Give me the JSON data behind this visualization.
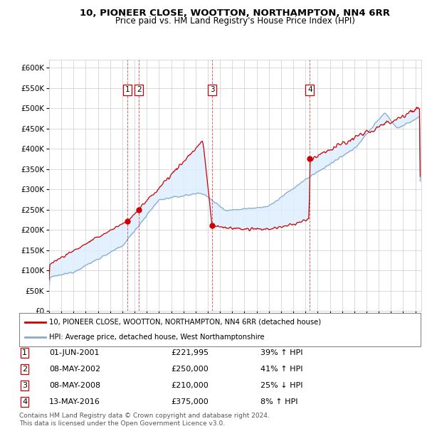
{
  "title": "10, PIONEER CLOSE, WOOTTON, NORTHAMPTON, NN4 6RR",
  "subtitle": "Price paid vs. HM Land Registry's House Price Index (HPI)",
  "legend_line1": "10, PIONEER CLOSE, WOOTTON, NORTHAMPTON, NN4 6RR (detached house)",
  "legend_line2": "HPI: Average price, detached house, West Northamptonshire",
  "footnote1": "Contains HM Land Registry data © Crown copyright and database right 2024.",
  "footnote2": "This data is licensed under the Open Government Licence v3.0.",
  "red_color": "#cc0000",
  "blue_color": "#88aacc",
  "fill_color": "#ddeeff",
  "grid_color": "#cccccc",
  "ylim": [
    0,
    620000
  ],
  "yticks": [
    0,
    50000,
    100000,
    150000,
    200000,
    250000,
    300000,
    350000,
    400000,
    450000,
    500000,
    550000,
    600000
  ],
  "xlim_start": 1995.0,
  "xlim_end": 2025.5,
  "transactions": [
    {
      "num": 1,
      "date_x": 2001.42,
      "price": 221995
    },
    {
      "num": 2,
      "date_x": 2002.35,
      "price": 250000
    },
    {
      "num": 3,
      "date_x": 2008.35,
      "price": 210000
    },
    {
      "num": 4,
      "date_x": 2016.36,
      "price": 375000
    }
  ],
  "table_rows": [
    {
      "num": 1,
      "date_str": "01-JUN-2001",
      "price_str": "£221,995",
      "pct_str": "39% ↑ HPI"
    },
    {
      "num": 2,
      "date_str": "08-MAY-2002",
      "price_str": "£250,000",
      "pct_str": "41% ↑ HPI"
    },
    {
      "num": 3,
      "date_str": "08-MAY-2008",
      "price_str": "£210,000",
      "pct_str": "25% ↓ HPI"
    },
    {
      "num": 4,
      "date_str": "13-MAY-2016",
      "price_str": "£375,000",
      "pct_str": "8% ↑ HPI"
    }
  ]
}
